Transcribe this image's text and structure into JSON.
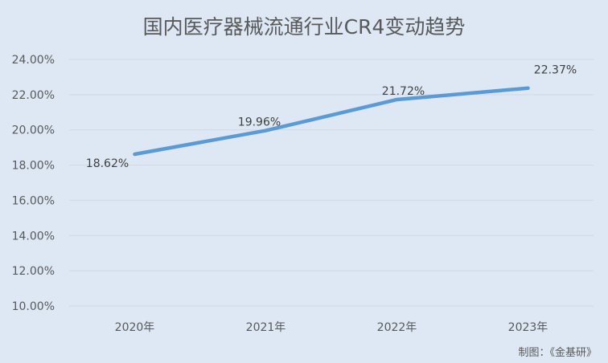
{
  "chart_data": {
    "type": "line",
    "title": "国内医疗器械流通行业CR4变动趋势",
    "xlabel": "",
    "ylabel": "",
    "categories": [
      "2020年",
      "2021年",
      "2022年",
      "2023年"
    ],
    "series": [
      {
        "name": "CR4",
        "values": [
          18.62,
          19.96,
          21.72,
          22.37
        ],
        "labels": [
          "18.62%",
          "19.96%",
          "21.72%",
          "22.37%"
        ],
        "color": "#5b9bd5"
      }
    ],
    "yticks": [
      "24.00%",
      "22.00%",
      "20.00%",
      "18.00%",
      "16.00%",
      "14.00%",
      "12.00%",
      "10.00%"
    ],
    "ylim": [
      10,
      24
    ],
    "grid": true,
    "legend": "none"
  },
  "credit": "制图：《金基研》"
}
